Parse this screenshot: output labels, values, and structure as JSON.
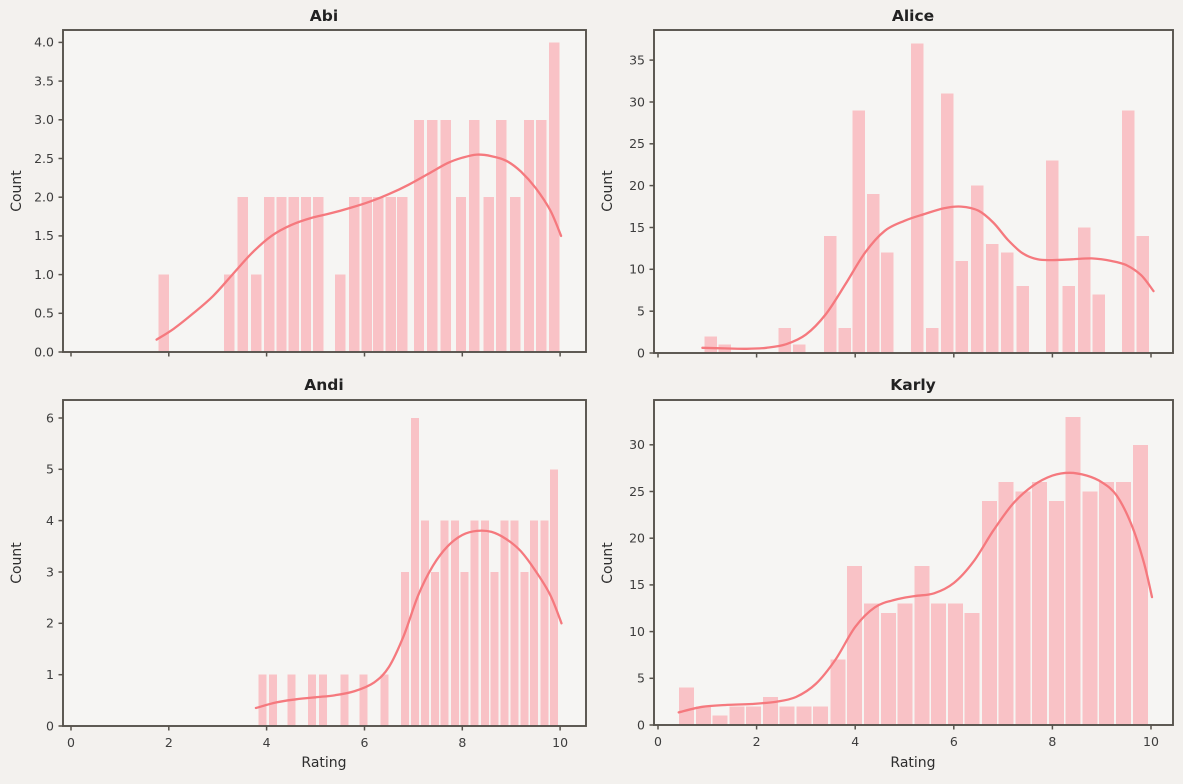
{
  "figure": {
    "kind": "seaborn histogram grid, 2 rows x 2 columns",
    "colors": {
      "background": "#f3f1ee",
      "axes_background": "#f6f5f3",
      "bar_fill": "#f9c2c6",
      "kde_line": "#f5797e",
      "spine": "#56524c",
      "tick_text": "#3d3d3d",
      "title_text": "#222222"
    }
  },
  "chart_data": [
    {
      "type": "bar",
      "subtype": "histogram_with_kde",
      "title": "Abi",
      "ylabel": "Count",
      "xlabel": "",
      "xlim": [
        -0.164,
        10.53
      ],
      "ylim": [
        0,
        4.16
      ],
      "grid": false,
      "legend": "none",
      "yticks": [
        0,
        0.5,
        1,
        1.5,
        2,
        2.5,
        3,
        3.5,
        4
      ],
      "ytick_labels": [
        "0.0",
        "0.5",
        "1.0",
        "1.5",
        "2.0",
        "2.5",
        "3.0",
        "3.5",
        "4.0"
      ],
      "xticks": [
        0,
        2,
        4,
        6,
        8,
        10
      ],
      "xtick_labels": [
        "0",
        "2",
        "4",
        "6",
        "8",
        "10"
      ],
      "show_x_tick_labels": false,
      "bin_width": 0.25,
      "bin_lefts": [
        1.77,
        3.11,
        3.39,
        3.66,
        3.93,
        4.18,
        4.43,
        4.68,
        4.93,
        5.38,
        5.67,
        5.92,
        6.16,
        6.41,
        6.65,
        6.99,
        7.26,
        7.54,
        7.85,
        8.12,
        8.42,
        8.67,
        8.96,
        9.24,
        9.49,
        9.76
      ],
      "counts": [
        1,
        1,
        2,
        1,
        2,
        2,
        2,
        2,
        2,
        1,
        2,
        2,
        2,
        2,
        2,
        3,
        3,
        3,
        2,
        3,
        2,
        3,
        2,
        3,
        3,
        4
      ],
      "kde": [
        [
          1.75,
          0.16
        ],
        [
          2.1,
          0.3
        ],
        [
          2.5,
          0.5
        ],
        [
          2.9,
          0.72
        ],
        [
          3.3,
          1.0
        ],
        [
          3.7,
          1.28
        ],
        [
          4.1,
          1.5
        ],
        [
          4.5,
          1.64
        ],
        [
          4.9,
          1.73
        ],
        [
          5.3,
          1.79
        ],
        [
          5.7,
          1.86
        ],
        [
          6.1,
          1.94
        ],
        [
          6.5,
          2.04
        ],
        [
          6.9,
          2.16
        ],
        [
          7.3,
          2.3
        ],
        [
          7.7,
          2.44
        ],
        [
          8.0,
          2.51
        ],
        [
          8.3,
          2.55
        ],
        [
          8.6,
          2.53
        ],
        [
          8.9,
          2.47
        ],
        [
          9.2,
          2.33
        ],
        [
          9.5,
          2.12
        ],
        [
          9.8,
          1.83
        ],
        [
          10.02,
          1.5
        ]
      ]
    },
    {
      "type": "bar",
      "subtype": "histogram_with_kde",
      "title": "Alice",
      "ylabel": "Count",
      "xlabel": "",
      "xlim": [
        -0.081,
        10.446
      ],
      "ylim": [
        0,
        38.6
      ],
      "grid": false,
      "legend": "none",
      "yticks": [
        0,
        5,
        10,
        15,
        20,
        25,
        30,
        35
      ],
      "ytick_labels": [
        "0",
        "5",
        "10",
        "15",
        "20",
        "25",
        "30",
        "35"
      ],
      "xticks": [
        0,
        2,
        4,
        6,
        8,
        10
      ],
      "xtick_labels": [
        "0",
        "2",
        "4",
        "6",
        "8",
        "10"
      ],
      "show_x_tick_labels": false,
      "bin_width": 0.29,
      "bin_lefts": [
        0.92,
        1.21,
        2.43,
        2.72,
        3.35,
        3.64,
        3.93,
        4.22,
        4.51,
        5.11,
        5.42,
        5.72,
        6.02,
        6.33,
        6.63,
        6.94,
        7.25,
        7.85,
        8.19,
        8.5,
        8.8,
        9.39,
        9.69
      ],
      "counts": [
        2,
        1,
        3,
        1,
        14,
        3,
        29,
        19,
        12,
        37,
        3,
        31,
        11,
        20,
        13,
        12,
        8,
        23,
        8,
        15,
        7,
        29,
        14
      ],
      "kde": [
        [
          0.9,
          0.62
        ],
        [
          1.35,
          0.55
        ],
        [
          1.8,
          0.5
        ],
        [
          2.2,
          0.62
        ],
        [
          2.6,
          1.05
        ],
        [
          3.0,
          2.2
        ],
        [
          3.4,
          4.6
        ],
        [
          3.8,
          8.2
        ],
        [
          4.2,
          12.0
        ],
        [
          4.6,
          14.6
        ],
        [
          5.0,
          15.8
        ],
        [
          5.4,
          16.6
        ],
        [
          5.8,
          17.3
        ],
        [
          6.15,
          17.5
        ],
        [
          6.5,
          17.0
        ],
        [
          6.8,
          15.6
        ],
        [
          7.1,
          13.5
        ],
        [
          7.4,
          11.9
        ],
        [
          7.7,
          11.2
        ],
        [
          8.0,
          11.1
        ],
        [
          8.4,
          11.2
        ],
        [
          8.8,
          11.3
        ],
        [
          9.2,
          11.0
        ],
        [
          9.5,
          10.5
        ],
        [
          9.8,
          9.3
        ],
        [
          10.05,
          7.4
        ]
      ]
    },
    {
      "type": "bar",
      "subtype": "histogram_with_kde",
      "title": "Andi",
      "ylabel": "Count",
      "xlabel": "Rating",
      "xlim": [
        -0.164,
        10.53
      ],
      "ylim": [
        0,
        6.35
      ],
      "grid": false,
      "legend": "none",
      "yticks": [
        0,
        1,
        2,
        3,
        4,
        5,
        6
      ],
      "ytick_labels": [
        "0",
        "1",
        "2",
        "3",
        "4",
        "5",
        "6"
      ],
      "xticks": [
        0,
        2,
        4,
        6,
        8,
        10
      ],
      "xtick_labels": [
        "0",
        "2",
        "4",
        "6",
        "8",
        "10"
      ],
      "show_x_tick_labels": true,
      "bin_width": 0.2,
      "bin_lefts": [
        3.81,
        4.03,
        4.41,
        4.83,
        5.05,
        5.49,
        5.88,
        6.31,
        6.73,
        6.93,
        7.14,
        7.34,
        7.54,
        7.75,
        7.95,
        8.15,
        8.36,
        8.56,
        8.76,
        8.97,
        9.17,
        9.37,
        9.58,
        9.78
      ],
      "counts": [
        1,
        1,
        1,
        1,
        1,
        1,
        1,
        1,
        3,
        6,
        4,
        3,
        4,
        4,
        3,
        4,
        4,
        3,
        4,
        4,
        3,
        4,
        4,
        5
      ],
      "kde": [
        [
          3.78,
          0.35
        ],
        [
          4.2,
          0.46
        ],
        [
          4.6,
          0.52
        ],
        [
          5.0,
          0.56
        ],
        [
          5.4,
          0.6
        ],
        [
          5.8,
          0.68
        ],
        [
          6.2,
          0.85
        ],
        [
          6.5,
          1.15
        ],
        [
          6.8,
          1.75
        ],
        [
          7.1,
          2.55
        ],
        [
          7.4,
          3.12
        ],
        [
          7.7,
          3.5
        ],
        [
          8.0,
          3.72
        ],
        [
          8.3,
          3.8
        ],
        [
          8.6,
          3.78
        ],
        [
          8.9,
          3.64
        ],
        [
          9.2,
          3.4
        ],
        [
          9.5,
          3.02
        ],
        [
          9.8,
          2.55
        ],
        [
          10.03,
          2.0
        ]
      ]
    },
    {
      "type": "bar",
      "subtype": "histogram_with_kde",
      "title": "Karly",
      "ylabel": "Count",
      "xlabel": "Rating",
      "xlim": [
        -0.081,
        10.446
      ],
      "ylim": [
        0,
        34.8
      ],
      "grid": false,
      "legend": "none",
      "yticks": [
        0,
        5,
        10,
        15,
        20,
        25,
        30
      ],
      "ytick_labels": [
        "0",
        "5",
        "10",
        "15",
        "20",
        "25",
        "30"
      ],
      "xticks": [
        0,
        2,
        4,
        6,
        8,
        10
      ],
      "xtick_labels": [
        "0",
        "2",
        "4",
        "6",
        "8",
        "10"
      ],
      "show_x_tick_labels": true,
      "bin_width": 0.341,
      "bin_lefts": [
        0.41,
        0.75,
        1.09,
        1.43,
        1.77,
        2.11,
        2.45,
        2.79,
        3.13,
        3.48,
        3.82,
        4.16,
        4.5,
        4.84,
        5.18,
        5.52,
        5.86,
        6.2,
        6.55,
        6.89,
        7.23,
        7.57,
        7.91,
        8.25,
        8.59,
        8.93,
        9.27,
        9.62
      ],
      "counts": [
        4,
        2,
        1,
        2,
        2,
        3,
        2,
        2,
        2,
        7,
        17,
        13,
        12,
        13,
        17,
        13,
        13,
        12,
        24,
        26,
        25,
        26,
        24,
        33,
        25,
        26,
        26,
        30
      ],
      "kde": [
        [
          0.42,
          1.35
        ],
        [
          0.9,
          1.95
        ],
        [
          1.4,
          2.15
        ],
        [
          1.9,
          2.25
        ],
        [
          2.4,
          2.5
        ],
        [
          2.8,
          3.0
        ],
        [
          3.2,
          4.4
        ],
        [
          3.6,
          7.0
        ],
        [
          4.0,
          10.5
        ],
        [
          4.4,
          12.6
        ],
        [
          4.8,
          13.4
        ],
        [
          5.2,
          13.8
        ],
        [
          5.6,
          14.1
        ],
        [
          6.0,
          15.2
        ],
        [
          6.4,
          17.5
        ],
        [
          6.8,
          20.8
        ],
        [
          7.2,
          23.7
        ],
        [
          7.6,
          25.6
        ],
        [
          8.0,
          26.7
        ],
        [
          8.35,
          27.0
        ],
        [
          8.7,
          26.7
        ],
        [
          9.0,
          26.0
        ],
        [
          9.3,
          24.6
        ],
        [
          9.6,
          21.5
        ],
        [
          9.85,
          17.5
        ],
        [
          10.02,
          13.7
        ]
      ]
    }
  ]
}
